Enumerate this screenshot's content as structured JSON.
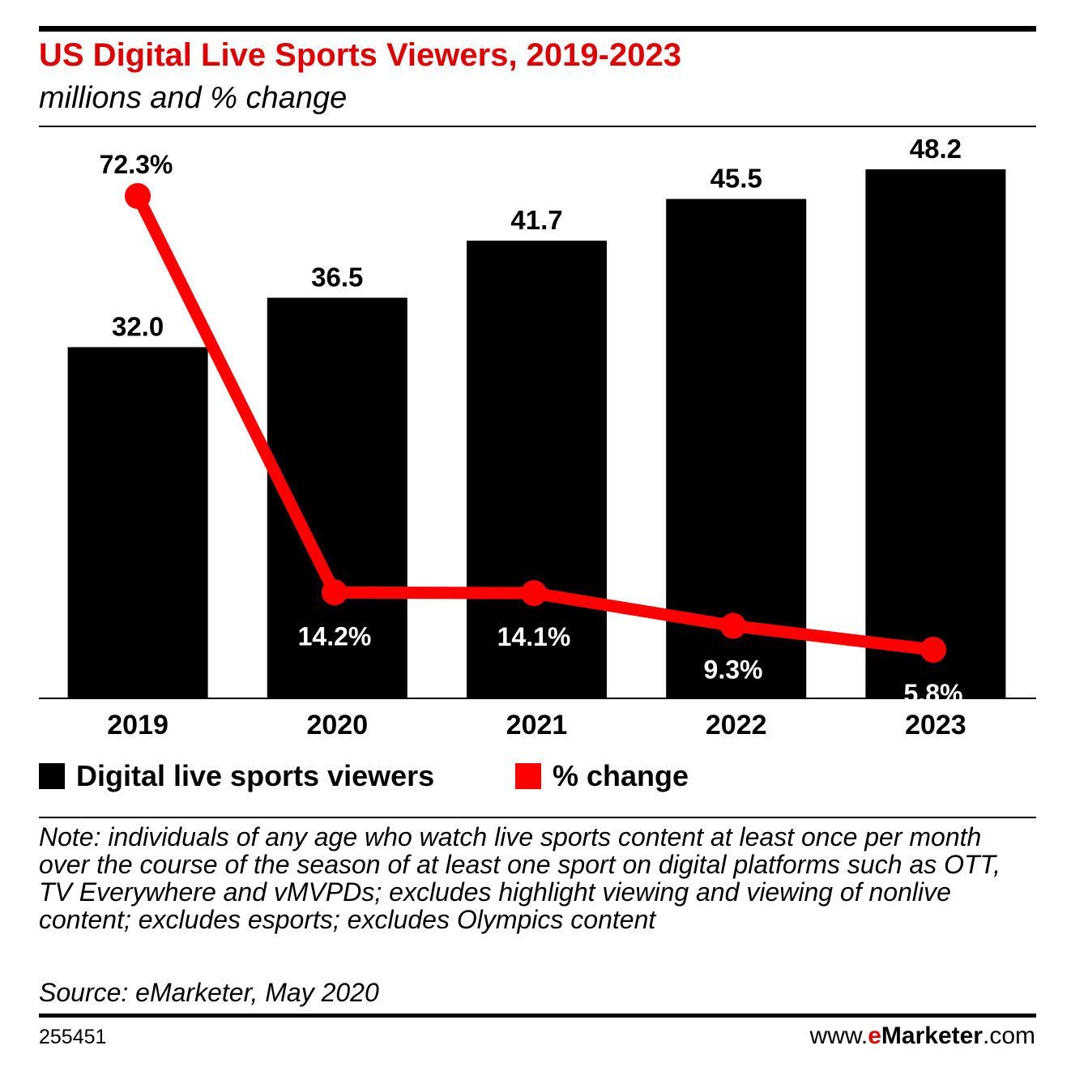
{
  "header": {
    "title": "US Digital Live Sports Viewers, 2019-2023",
    "subtitle": "millions and % change"
  },
  "chart_data": {
    "type": "bar",
    "categories": [
      "2019",
      "2020",
      "2021",
      "2022",
      "2023"
    ],
    "series": [
      {
        "name": "Digital live sports viewers",
        "kind": "bar",
        "color": "#000000",
        "values": [
          32.0,
          36.5,
          41.7,
          45.5,
          48.2
        ],
        "labels": [
          "32.0",
          "36.5",
          "41.7",
          "45.5",
          "48.2"
        ]
      },
      {
        "name": "% change",
        "kind": "line",
        "color": "#ff0000",
        "values": [
          72.3,
          14.2,
          14.1,
          9.3,
          5.8
        ],
        "labels": [
          "72.3%",
          "14.2%",
          "14.1%",
          "9.3%",
          "5.8%"
        ]
      }
    ],
    "ylim_bars": [
      0,
      50
    ],
    "ylim_line": [
      0,
      90
    ],
    "grid": false,
    "legend": "bottom-left"
  },
  "legend": {
    "bars_label": "Digital live sports viewers",
    "line_label": "% change"
  },
  "footer": {
    "note": "Note: individuals of any age who watch live sports content at least once per month over the course of the season of at least one sport on digital platforms such as OTT, TV Everywhere and vMVPDs; excludes highlight viewing and viewing of nonlive content; excludes esports; excludes Olympics content",
    "source": "Source: eMarketer, May 2020",
    "chart_id": "255451",
    "site_prefix": "www.",
    "site_brand_e": "e",
    "site_brand_rest": "Marketer",
    "site_suffix": ".com"
  },
  "colors": {
    "accent": "#e00000",
    "bar": "#000000",
    "line": "#ff0000"
  }
}
